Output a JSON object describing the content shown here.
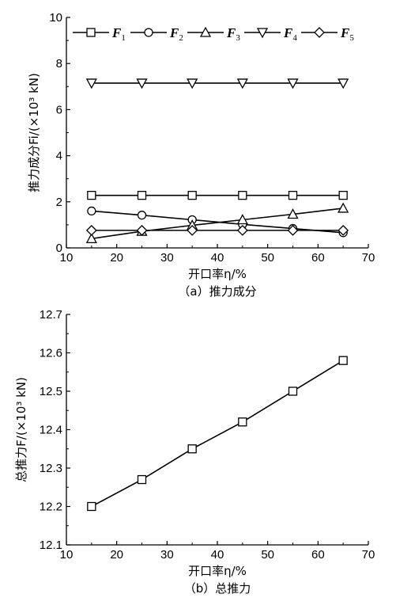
{
  "chart_data": [
    {
      "type": "line",
      "caption": "（a）推力成分",
      "xlabel": "开口率η/%",
      "ylabel": "推力成分Fi/(×10³ kN)",
      "xlim": [
        10,
        70
      ],
      "ylim": [
        0,
        10
      ],
      "x_ticks": [
        "10",
        "20",
        "30",
        "40",
        "50",
        "60",
        "70"
      ],
      "y_ticks": [
        "0",
        "2",
        "4",
        "6",
        "8",
        "10"
      ],
      "x": [
        15,
        25,
        35,
        45,
        55,
        65
      ],
      "grid": false,
      "legend_position": "top",
      "series": [
        {
          "name": "F1",
          "marker": "square",
          "values": [
            2.28,
            2.28,
            2.28,
            2.28,
            2.28,
            2.28
          ]
        },
        {
          "name": "F2",
          "marker": "circle",
          "values": [
            1.6,
            1.42,
            1.22,
            1.02,
            0.84,
            0.66
          ]
        },
        {
          "name": "F3",
          "marker": "triangle-up",
          "values": [
            0.4,
            0.72,
            0.98,
            1.22,
            1.46,
            1.72
          ]
        },
        {
          "name": "F4",
          "marker": "triangle-down",
          "values": [
            7.15,
            7.15,
            7.15,
            7.15,
            7.15,
            7.15
          ]
        },
        {
          "name": "F5",
          "marker": "diamond",
          "values": [
            0.76,
            0.76,
            0.76,
            0.76,
            0.76,
            0.76
          ]
        }
      ]
    },
    {
      "type": "line",
      "caption": "（b）总推力",
      "xlabel": "开口率η/%",
      "ylabel": "总推力F/(×10³ kN)",
      "xlim": [
        10,
        70
      ],
      "ylim": [
        12.1,
        12.7
      ],
      "x_ticks": [
        "10",
        "20",
        "30",
        "40",
        "50",
        "60",
        "70"
      ],
      "y_ticks": [
        "12.1",
        "12.2",
        "12.3",
        "12.4",
        "12.5",
        "12.6",
        "12.7"
      ],
      "x": [
        15,
        25,
        35,
        45,
        55,
        65
      ],
      "grid": false,
      "series": [
        {
          "marker": "square",
          "values": [
            12.2,
            12.27,
            12.35,
            12.42,
            12.5,
            12.58
          ]
        }
      ]
    }
  ]
}
